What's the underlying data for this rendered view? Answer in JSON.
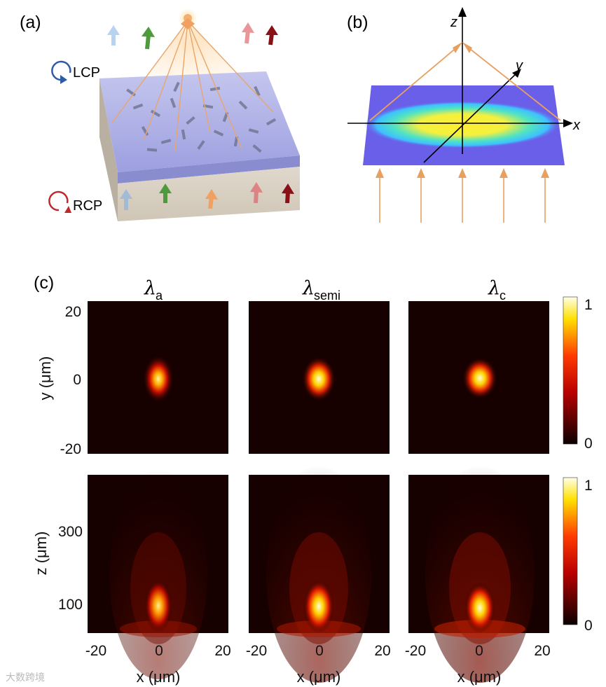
{
  "panel_a": {
    "letter": "(a)",
    "lcp_label": "LCP",
    "rcp_label": "RCP"
  },
  "panel_b": {
    "letter": "(b)",
    "axis_z": "z",
    "axis_y": "y",
    "axis_x": "x"
  },
  "panel_c": {
    "letter": "(c)",
    "columns": [
      {
        "symbol": "λ",
        "subscript": "a"
      },
      {
        "symbol": "λ",
        "subscript": "semi"
      },
      {
        "symbol": "λ",
        "subscript": "c"
      }
    ],
    "top_row": {
      "ylabel": "y (μm)",
      "yticks": [
        "20",
        "0",
        "-20"
      ],
      "colorbar_ticks": [
        "1",
        "0"
      ]
    },
    "bottom_row": {
      "ylabel": "z (μm)",
      "yticks": [
        "300",
        "100"
      ],
      "colorbar_ticks": [
        "1",
        "0"
      ]
    },
    "xlabel": "x (μm)",
    "xticks": [
      "-20",
      "0",
      "20"
    ]
  },
  "chart_data": {
    "type": "heatmap",
    "colormap": "hot",
    "colorbar_range": [
      0,
      1
    ],
    "rows": [
      {
        "name": "xy-plane",
        "x_range_um": [
          -20,
          20
        ],
        "y_range_um": [
          -20,
          20
        ],
        "peak_at": [
          0,
          0
        ]
      },
      {
        "name": "xz-plane",
        "x_range_um": [
          -20,
          20
        ],
        "z_ticks_um": [
          100,
          300
        ],
        "peak_z_um": 65
      }
    ],
    "columns": [
      "λa",
      "λsemi",
      "λc"
    ],
    "relative_peak_intensity": [
      0.75,
      0.9,
      1.0
    ]
  },
  "watermark": "大数跨境"
}
